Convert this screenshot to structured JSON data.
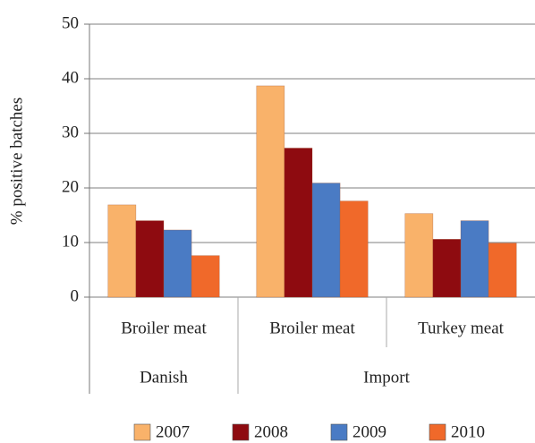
{
  "chart_data": {
    "type": "bar",
    "ylabel": "% positive batches",
    "groups": [
      {
        "name": "Danish",
        "categories": [
          "Broiler meat"
        ]
      },
      {
        "name": "Import",
        "categories": [
          "Broiler meat",
          "Turkey meat"
        ]
      }
    ],
    "series": [
      {
        "name": "2007",
        "color": "#f9b26a",
        "values": [
          16.9,
          38.7,
          15.3
        ]
      },
      {
        "name": "2008",
        "color": "#8e0b10",
        "values": [
          14.0,
          27.3,
          10.6
        ]
      },
      {
        "name": "2009",
        "color": "#4a7bc4",
        "values": [
          12.3,
          20.9,
          14.0
        ]
      },
      {
        "name": "2010",
        "color": "#f0692a",
        "values": [
          7.6,
          17.6,
          9.9
        ]
      }
    ],
    "ylim": [
      0,
      50
    ],
    "yticks": [
      0,
      10,
      20,
      30,
      40,
      50
    ],
    "grid": true,
    "legend": "bottom"
  }
}
